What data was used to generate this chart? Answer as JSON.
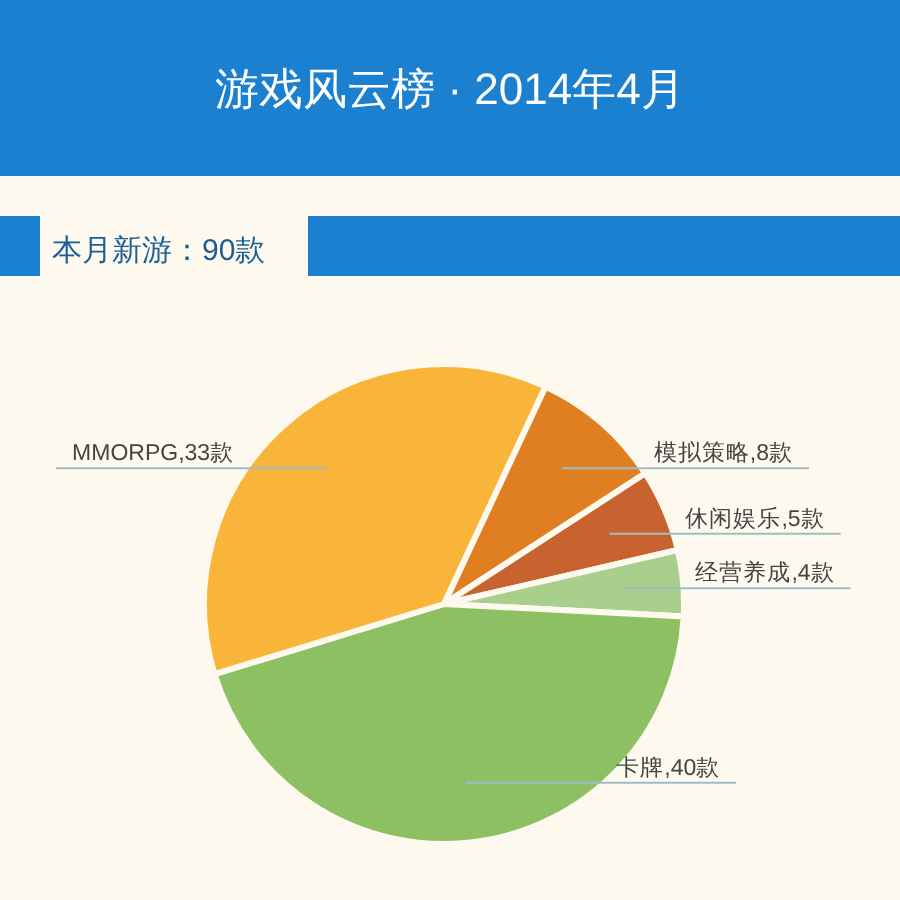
{
  "chart_data": {
    "type": "pie",
    "title": "游戏风云榜 · 2014年4月",
    "subtitle": "本月新游：90款",
    "categories": [
      "模拟策略",
      "休闲娱乐",
      "经营养成",
      "卡牌",
      "MMORPG"
    ],
    "values": [
      8,
      5,
      4,
      40,
      33
    ],
    "colors": [
      "#e07f22",
      "#c8622e",
      "#a8d08c",
      "#8cc063",
      "#f8b53a"
    ],
    "value_labels": [
      "8款",
      "5款",
      "4款",
      "40款",
      "33款"
    ]
  }
}
